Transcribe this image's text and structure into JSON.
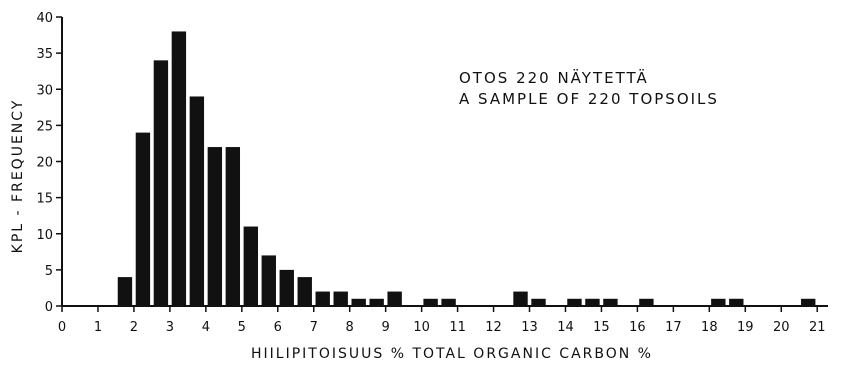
{
  "chart_data": {
    "type": "bar",
    "title": "",
    "ylabel": "KPL - FREQUENCY",
    "xlabel": "HIILIPITOISUUS % TOTAL ORGANIC CARBON %",
    "annotation_lines": [
      "OTOS 220 NÄYTETTÄ",
      "A SAMPLE OF 220 TOPSOILS"
    ],
    "xlim": [
      0,
      21.3
    ],
    "ylim": [
      0,
      40
    ],
    "x_ticks": [
      "0",
      "1",
      "2",
      "3",
      "4",
      "5",
      "6",
      "7",
      "8",
      "9",
      "10",
      "11",
      "12",
      "13",
      "14",
      "15",
      "16",
      "17",
      "18",
      "19",
      "20",
      "21"
    ],
    "y_ticks": [
      "0",
      "5",
      "10",
      "15",
      "20",
      "25",
      "30",
      "35",
      "40"
    ],
    "bin_width": 0.25,
    "grid": false,
    "bars": [
      {
        "x": 1.75,
        "y": 4
      },
      {
        "x": 2.25,
        "y": 24
      },
      {
        "x": 2.75,
        "y": 34
      },
      {
        "x": 3.25,
        "y": 38
      },
      {
        "x": 3.75,
        "y": 29
      },
      {
        "x": 4.25,
        "y": 22
      },
      {
        "x": 4.75,
        "y": 22
      },
      {
        "x": 5.25,
        "y": 11
      },
      {
        "x": 5.75,
        "y": 7
      },
      {
        "x": 6.25,
        "y": 5
      },
      {
        "x": 6.75,
        "y": 4
      },
      {
        "x": 7.25,
        "y": 2
      },
      {
        "x": 7.75,
        "y": 2
      },
      {
        "x": 8.25,
        "y": 1
      },
      {
        "x": 8.75,
        "y": 1
      },
      {
        "x": 9.25,
        "y": 2
      },
      {
        "x": 10.25,
        "y": 1
      },
      {
        "x": 10.75,
        "y": 1
      },
      {
        "x": 12.75,
        "y": 2
      },
      {
        "x": 13.25,
        "y": 1
      },
      {
        "x": 14.25,
        "y": 1
      },
      {
        "x": 14.75,
        "y": 1
      },
      {
        "x": 15.25,
        "y": 1
      },
      {
        "x": 16.25,
        "y": 1
      },
      {
        "x": 18.25,
        "y": 1
      },
      {
        "x": 18.75,
        "y": 1
      },
      {
        "x": 20.75,
        "y": 1
      }
    ],
    "bar_color": "#111111"
  }
}
